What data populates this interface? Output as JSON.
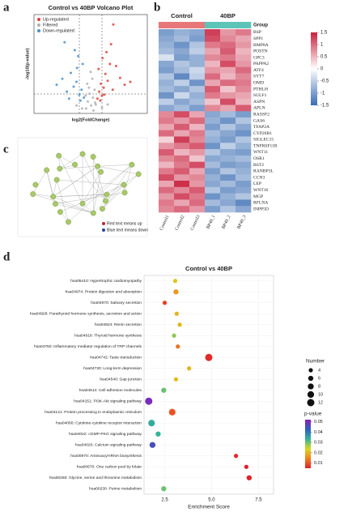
{
  "panels": [
    "a",
    "b",
    "c",
    "d"
  ],
  "network": {
    "legend": [
      {
        "text": "Red text means up",
        "color": "#c0282d"
      },
      {
        "text": "Blue text means down",
        "color": "#2d3f9a"
      }
    ]
  },
  "chart_data": [
    {
      "type": "scatter",
      "title": "Control vs 40BP Volcano Plot",
      "xlabel": "log2(FoldChange)",
      "ylabel": "-log10(p-value)",
      "xlim": [
        -10,
        10
      ],
      "ylim": [
        0,
        10
      ],
      "series": [
        {
          "name": "Up-regulated",
          "color": "#e0403a",
          "x": [
            1.2,
            1.5,
            1.8,
            2.0,
            2.3,
            2.6,
            3.0,
            3.4,
            3.9,
            4.5,
            5.2,
            6.0,
            1.4,
            2.1,
            2.8,
            3.6,
            1.7,
            2.4,
            7.0,
            4.0
          ],
          "values": [
            1.5,
            2.2,
            3.0,
            1.8,
            2.6,
            4.0,
            3.3,
            5.0,
            2.4,
            4.8,
            3.6,
            2.9,
            4.5,
            5.6,
            6.2,
            7.0,
            1.3,
            1.9,
            3.2,
            9.0
          ]
        },
        {
          "name": "Filtered",
          "color": "#b0b0b0",
          "x": [
            -0.8,
            -0.5,
            -0.2,
            0.1,
            0.4,
            0.7,
            -0.6,
            0.3,
            0.9,
            -0.9,
            0.0,
            0.5,
            -0.3,
            0.8,
            2.0,
            -2.5,
            3.0,
            -1.5
          ],
          "values": [
            0.5,
            1.2,
            2.0,
            0.8,
            1.6,
            2.4,
            3.0,
            3.5,
            0.9,
            1.8,
            4.2,
            0.3,
            2.6,
            1.1,
            0.6,
            0.8,
            0.9,
            0.5
          ]
        },
        {
          "name": "Down-regulated",
          "color": "#4a90c8",
          "x": [
            -1.2,
            -1.6,
            -2.0,
            -2.5,
            -3.0,
            -3.5,
            -4.2,
            -5.0,
            -1.4,
            -2.2,
            -2.8,
            -3.8,
            -6.0,
            -1.8,
            -2.4,
            -4.6
          ],
          "values": [
            1.6,
            2.4,
            1.9,
            3.2,
            2.7,
            4.1,
            2.2,
            3.5,
            5.0,
            5.8,
            6.4,
            1.5,
            2.9,
            1.3,
            4.6,
            7.2
          ]
        }
      ]
    },
    {
      "type": "heatmap",
      "group_label": "Group",
      "groups": [
        {
          "name": "Control",
          "color": "#e8777a"
        },
        {
          "name": "40BP",
          "color": "#5cc5b8"
        }
      ],
      "column_groups": [
        0,
        0,
        0,
        1,
        1,
        1
      ],
      "columns": [
        "Control1",
        "Control2",
        "Control3",
        "BP40_1",
        "BP40_2",
        "BP40_3"
      ],
      "rows": [
        "BSP",
        "SPP1",
        "BMP8A",
        "POSTN",
        "GPC3",
        "PAPPA2",
        "ATF4",
        "SYT7",
        "OMD",
        "PTHLH",
        "SULF1",
        "ASPN",
        "APLN",
        "RASSF2",
        "GAS6",
        "TFAP2A",
        "CYP26B1",
        "SIGLEC15",
        "TNFRSF11B",
        "WNT11",
        "OSR1",
        "BST2",
        "RANBP3L",
        "CCN3",
        "LEP",
        "WNT16",
        "MGP",
        "RFLNA",
        "INPP5D"
      ],
      "values": [
        [
          -1.0,
          -0.8,
          -0.9,
          1.3,
          0.7,
          0.9
        ],
        [
          -0.9,
          -0.7,
          -1.0,
          1.2,
          0.8,
          0.6
        ],
        [
          -0.8,
          -1.1,
          -0.6,
          0.9,
          1.0,
          0.7
        ],
        [
          -0.7,
          -0.9,
          -0.5,
          0.6,
          1.1,
          0.5
        ],
        [
          -0.3,
          -1.0,
          -0.8,
          0.8,
          0.9,
          0.6
        ],
        [
          -0.9,
          -0.6,
          -0.8,
          0.5,
          1.2,
          0.7
        ],
        [
          -1.0,
          -0.7,
          -0.4,
          0.7,
          0.6,
          1.0
        ],
        [
          -0.6,
          -1.2,
          -0.5,
          1.0,
          0.5,
          0.8
        ],
        [
          -0.8,
          -0.5,
          -1.1,
          0.6,
          1.0,
          0.9
        ],
        [
          -0.7,
          -0.9,
          -0.6,
          1.1,
          0.4,
          0.8
        ],
        [
          -1.1,
          -0.4,
          -0.8,
          0.9,
          0.7,
          0.6
        ],
        [
          -0.5,
          -0.9,
          -0.7,
          0.4,
          1.2,
          0.5
        ],
        [
          -0.9,
          -0.7,
          -1.0,
          0.8,
          0.6,
          1.1
        ],
        [
          0.8,
          1.2,
          0.6,
          -0.9,
          -0.7,
          -1.0
        ],
        [
          0.9,
          0.7,
          1.0,
          -0.8,
          -1.1,
          -0.6
        ],
        [
          0.6,
          1.1,
          0.5,
          -1.0,
          -0.6,
          -0.9
        ],
        [
          1.0,
          0.6,
          0.9,
          -0.7,
          -0.9,
          -1.1
        ],
        [
          0.3,
          1.3,
          0.8,
          -0.8,
          -1.0,
          -0.6
        ],
        [
          0.7,
          0.9,
          1.1,
          -1.1,
          -0.5,
          -0.8
        ],
        [
          1.1,
          0.5,
          0.7,
          -0.6,
          -0.9,
          -1.0
        ],
        [
          0.8,
          1.0,
          0.4,
          -0.9,
          -0.8,
          -0.7
        ],
        [
          0.5,
          0.9,
          1.2,
          -0.7,
          -1.0,
          -0.9
        ],
        [
          0.9,
          1.1,
          0.6,
          -1.0,
          -0.6,
          -0.8
        ],
        [
          1.2,
          0.7,
          0.8,
          -0.8,
          -1.1,
          -0.7
        ],
        [
          0.6,
          1.4,
          0.7,
          -0.9,
          -0.7,
          -1.0
        ],
        [
          1.0,
          0.8,
          1.1,
          -0.6,
          -1.0,
          -0.9
        ],
        [
          0.7,
          1.2,
          0.9,
          -1.1,
          -0.8,
          -0.6
        ],
        [
          0.9,
          0.6,
          1.0,
          -0.7,
          -0.9,
          -1.2
        ],
        [
          0.8,
          1.0,
          0.7,
          -1.0,
          -0.6,
          -0.9
        ]
      ],
      "clim": [
        -1.5,
        1.5
      ],
      "colors": [
        "#3b6db3",
        "#ffffff",
        "#c8213e"
      ],
      "cticks": [
        1.5,
        1,
        0.5,
        0,
        -0.5,
        -1,
        -1.5
      ]
    },
    {
      "type": "bubble",
      "title": "Control vs 40BP",
      "xlabel": "Enrichment Score",
      "categories": [
        "hsa05410: Hypertrophic cardiomyopathy",
        "hsa04974: Protein digestion and absorption",
        "hsa04970: Salivary secretion",
        "hsa04928: Parathyroid hormone synthesis, secretion and action",
        "hsa04924: Renin secretion",
        "hsa04918: Thyroid hormone synthesis",
        "hsa04750: Inflammatory mediator regulation of TRP channels",
        "hsa04742: Taste transduction",
        "hsa04730: Long-term depression",
        "hsa04540: Gap junction",
        "hsa04514: Cell adhesion molecules",
        "hsa04151: PI3K-Akt signaling pathway",
        "hsa04141: Protein processing in endoplasmic reticulum",
        "hsa04060: Cytokine-cytokine receptor interaction",
        "hsa04022: cGMP-PKG signaling pathway",
        "hsa04020: Calcium signaling pathway",
        "hsa00970: Aminoacyl-tRNA biosynthesis",
        "hsa00670: One carbon pool by folate",
        "hsa00260: Glycine, serine and threonine metabolism",
        "hsa00230: Purine metabolism"
      ],
      "values": [
        3.06,
        3.1,
        2.5,
        3.14,
        3.3,
        3.0,
        3.2,
        4.85,
        3.8,
        3.1,
        2.45,
        1.65,
        2.9,
        1.8,
        2.15,
        1.85,
        6.3,
        6.85,
        7.0,
        2.45
      ],
      "sizes": [
        4,
        6,
        4,
        4,
        4,
        4,
        4,
        12,
        4,
        4,
        6,
        12,
        10,
        10,
        6,
        8,
        4,
        4,
        6,
        6
      ],
      "pvalues": [
        0.022,
        0.017,
        0.008,
        0.02,
        0.02,
        0.028,
        0.013,
        0.006,
        0.02,
        0.021,
        0.03,
        0.05,
        0.01,
        0.034,
        0.033,
        0.045,
        0.006,
        0.005,
        0.005,
        0.03
      ],
      "xlim": [
        1.4,
        8.3
      ],
      "xticks": [
        2.5,
        {
          "value": 5,
          "label": "5.0"
        },
        7.5
      ],
      "grid": true,
      "size_legend": {
        "title": "Number",
        "values": [
          4,
          6,
          8,
          10,
          12
        ]
      },
      "color_legend": {
        "title": "p-value",
        "ticks": [
          0.05,
          0.04,
          0.03,
          0.02,
          0.01
        ],
        "clim": [
          0.005,
          0.052
        ],
        "colors": [
          "#e0202a",
          "#f08020",
          "#d8d81f",
          "#35b39a",
          "#2f5fc0",
          "#8a1fb5"
        ]
      }
    }
  ]
}
